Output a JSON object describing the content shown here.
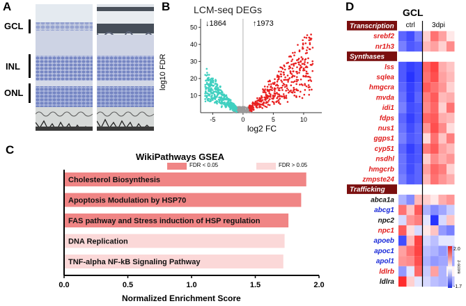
{
  "panel_a": {
    "letter": "A",
    "layers": [
      "GCL",
      "INL",
      "ONL"
    ]
  },
  "panel_b": {
    "letter": "B",
    "title": "LCM-seq DEGs",
    "down_count": "1864",
    "up_count": "1973",
    "xlabel": "log2 FC",
    "ylabel": "log10 FDR",
    "xticks": [
      "-5",
      "0",
      "5",
      "10"
    ],
    "yticks": [
      "10",
      "20",
      "30",
      "40",
      "50"
    ],
    "colors": {
      "down": "#40d0c0",
      "up": "#e82020",
      "ns": "#9a9a9a"
    }
  },
  "panel_c": {
    "letter": "C",
    "title": "WikiPathways GSEA",
    "legend": [
      {
        "label": "FDR < 0.05",
        "color": "#f08585"
      },
      {
        "label": "FDR > 0.05",
        "color": "#fbd8d8"
      }
    ],
    "xlabel": "Normalized Enrichment Score",
    "xticks": [
      "0.0",
      "0.5",
      "1.0",
      "1.5",
      "2.0"
    ]
  },
  "chart_data": {
    "type": "bar",
    "orientation": "horizontal",
    "categories": [
      "Cholesterol Biosynthesis",
      "Apoptosis Modulation by HSP70",
      "FAS pathway and Stress induction of HSP regulation",
      "DNA Replication",
      "TNF-alpha NF-kB Signaling Pathway"
    ],
    "values": [
      1.9,
      1.86,
      1.76,
      1.73,
      1.72
    ],
    "significant": [
      true,
      true,
      true,
      false,
      false
    ],
    "title": "WikiPathways GSEA",
    "xlabel": "Normalized Enrichment Score",
    "xlim": [
      0,
      2.0
    ],
    "legend_position": "top-right"
  },
  "panel_d": {
    "letter": "D",
    "title": "GCL",
    "col_labels": [
      "ctrl",
      "3dpi"
    ],
    "colorbar": {
      "max": "2.0",
      "min": "-1.7",
      "label": "z-score"
    },
    "groups": [
      {
        "header": "Transcription",
        "genes": [
          {
            "name": "srebf2",
            "color": "#e01b1b"
          },
          {
            "name": "nr1h3",
            "color": "#e01b1b"
          }
        ]
      },
      {
        "header": "Synthases",
        "genes": [
          {
            "name": "lss",
            "color": "#e01b1b"
          },
          {
            "name": "sqlea",
            "color": "#e01b1b"
          },
          {
            "name": "hmgcra",
            "color": "#e01b1b"
          },
          {
            "name": "mvda",
            "color": "#e01b1b"
          },
          {
            "name": "idi1",
            "color": "#e01b1b"
          },
          {
            "name": "fdps",
            "color": "#e01b1b"
          },
          {
            "name": "nus1",
            "color": "#e01b1b"
          },
          {
            "name": "ggps1",
            "color": "#e01b1b"
          },
          {
            "name": "cyp51",
            "color": "#e01b1b"
          },
          {
            "name": "nsdhl",
            "color": "#e01b1b"
          },
          {
            "name": "hmgcrb",
            "color": "#e01b1b"
          },
          {
            "name": "zmpste24",
            "color": "#e01b1b"
          }
        ]
      },
      {
        "header": "Trafficking",
        "genes": [
          {
            "name": "abca1a",
            "color": "#111111"
          },
          {
            "name": "abcg1",
            "color": "#1a2ad8"
          },
          {
            "name": "npc2",
            "color": "#111111"
          },
          {
            "name": "npc1",
            "color": "#e01b1b"
          },
          {
            "name": "apoeb",
            "color": "#1a2ad8"
          },
          {
            "name": "apoc1",
            "color": "#1a2ad8"
          },
          {
            "name": "apol1",
            "color": "#1a2ad8"
          },
          {
            "name": "ldlrb",
            "color": "#e01b1b"
          },
          {
            "name": "ldlra",
            "color": "#111111"
          }
        ]
      }
    ],
    "heatmap_values": {
      "transcription": [
        [
          -1.2,
          -1.4,
          -1.0,
          0.4,
          1.2,
          0.8,
          0.2
        ],
        [
          -1.0,
          -1.3,
          -1.2,
          0.6,
          0.8,
          0.4,
          1.0
        ]
      ],
      "synthases": [
        [
          -1.3,
          -1.5,
          -1.4,
          1.3,
          1.6,
          0.7,
          0.5
        ],
        [
          -1.3,
          -1.6,
          -1.4,
          1.2,
          1.5,
          0.8,
          0.6
        ],
        [
          -1.2,
          -1.5,
          -1.3,
          1.4,
          1.2,
          0.9,
          0.4
        ],
        [
          -1.1,
          -1.5,
          -1.2,
          1.1,
          1.4,
          0.6,
          0.7
        ],
        [
          -1.0,
          -1.4,
          -1.3,
          1.0,
          1.3,
          0.4,
          1.2
        ],
        [
          -1.2,
          -1.5,
          -1.3,
          1.3,
          1.4,
          0.7,
          0.6
        ],
        [
          -1.1,
          -1.4,
          -1.2,
          0.9,
          1.5,
          1.0,
          0.3
        ],
        [
          -1.0,
          -1.3,
          -1.2,
          0.3,
          1.2,
          0.5,
          1.1
        ],
        [
          -1.2,
          -1.5,
          -1.3,
          1.1,
          1.4,
          0.8,
          0.6
        ],
        [
          -1.1,
          -1.4,
          -1.3,
          0.4,
          1.0,
          0.7,
          0.9
        ],
        [
          -1.1,
          -1.4,
          -1.2,
          0.8,
          1.3,
          1.1,
          0.4
        ],
        [
          -1.0,
          -1.3,
          -1.2,
          0.6,
          1.2,
          0.9,
          0.7
        ]
      ],
      "trafficking": [
        [
          -0.6,
          -0.9,
          0.6,
          0.4,
          0.2,
          0.7,
          0.9
        ],
        [
          1.2,
          0.5,
          1.4,
          -0.6,
          -0.9,
          -0.7,
          -0.4
        ],
        [
          -0.3,
          0.9,
          1.1,
          -0.2,
          -1.6,
          -0.3,
          0.5
        ],
        [
          1.4,
          0.3,
          -0.3,
          0.2,
          0.5,
          -0.8,
          -1.0
        ],
        [
          -1.4,
          0.6,
          1.6,
          -0.3,
          -0.5,
          -0.2,
          -0.2
        ],
        [
          0.8,
          1.2,
          1.6,
          -0.5,
          -0.6,
          -0.8,
          -0.6
        ],
        [
          0.9,
          1.0,
          1.5,
          -0.6,
          -0.8,
          -0.7,
          -0.7
        ],
        [
          -0.8,
          -0.2,
          1.3,
          -0.4,
          0.8,
          -0.6,
          0.1
        ],
        [
          1.8,
          0.4,
          -0.2,
          -0.3,
          -0.5,
          -0.6,
          -0.5
        ]
      ]
    }
  }
}
